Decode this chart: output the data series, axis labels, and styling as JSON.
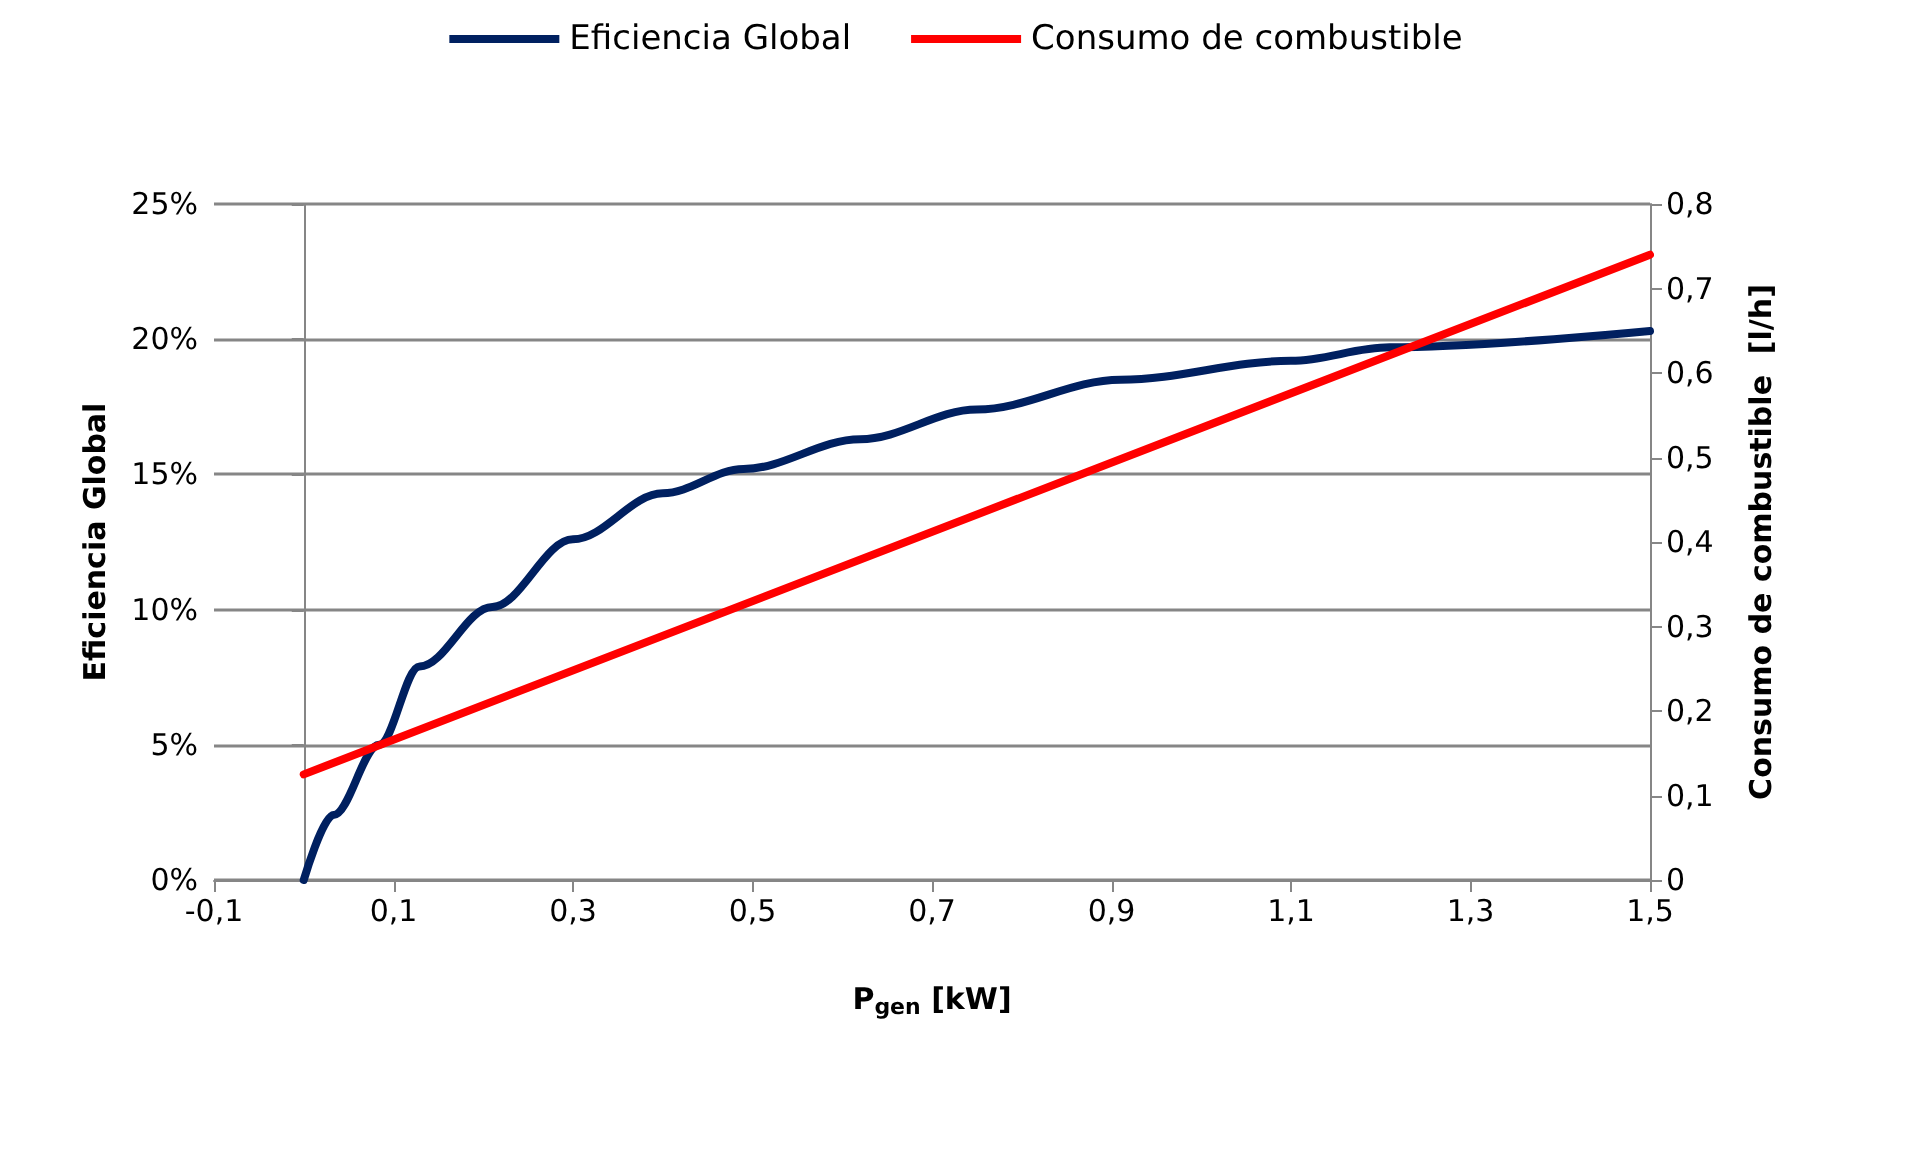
{
  "chart_data": {
    "type": "line",
    "xlabel": "P$_{gen}$ [kW]",
    "ylabel": "Eficiencia Global",
    "y2label": "Consumo de combustible  [l/h]",
    "xlim": [
      -0.1,
      1.5
    ],
    "xticks": [
      {
        "value": -0.1,
        "label": "-0,1"
      },
      {
        "value": 0.1,
        "label": "0,1"
      },
      {
        "value": 0.3,
        "label": "0,3"
      },
      {
        "value": 0.5,
        "label": "0,5"
      },
      {
        "value": 0.7,
        "label": "0,7"
      },
      {
        "value": 0.9,
        "label": "0,9"
      },
      {
        "value": 1.1,
        "label": "1,1"
      },
      {
        "value": 1.3,
        "label": "1,3"
      },
      {
        "value": 1.5,
        "label": "1,5"
      }
    ],
    "ylim": [
      0,
      25
    ],
    "yticks": [
      {
        "value": 0,
        "label": "0%"
      },
      {
        "value": 5,
        "label": "5%"
      },
      {
        "value": 10,
        "label": "10%"
      },
      {
        "value": 15,
        "label": "15%"
      },
      {
        "value": 20,
        "label": "20%"
      },
      {
        "value": 25,
        "label": "25%"
      }
    ],
    "y2lim": [
      0,
      0.8
    ],
    "y2ticks": [
      {
        "value": 0,
        "label": "0"
      },
      {
        "value": 0.1,
        "label": "0,1"
      },
      {
        "value": 0.2,
        "label": "0,2"
      },
      {
        "value": 0.3,
        "label": "0,3"
      },
      {
        "value": 0.4,
        "label": "0,4"
      },
      {
        "value": 0.5,
        "label": "0,5"
      },
      {
        "value": 0.6,
        "label": "0,6"
      },
      {
        "value": 0.7,
        "label": "0,7"
      },
      {
        "value": 0.8,
        "label": "0,8"
      }
    ],
    "grid": "y",
    "legend": "top",
    "marker": "none",
    "line_style": "solid",
    "series": [
      {
        "name": "Eficiencia Global",
        "color": "#002060",
        "x": [
          0,
          0.033,
          0.084,
          0.129,
          0.21,
          0.3,
          0.4,
          0.49,
          0.62,
          0.75,
          0.91,
          1.1,
          1.21,
          1.5
        ],
        "values": [
          0,
          2.4,
          5,
          7.9,
          10.1,
          12.6,
          14.3,
          15.2,
          16.3,
          17.4,
          18.5,
          19.2,
          19.7,
          20.3
        ]
      },
      {
        "name": "Consumo de combustible",
        "color": "#ff0000",
        "axis": "y2",
        "x": [
          0,
          1.5
        ],
        "values": [
          0.125,
          0.74
        ]
      }
    ]
  }
}
